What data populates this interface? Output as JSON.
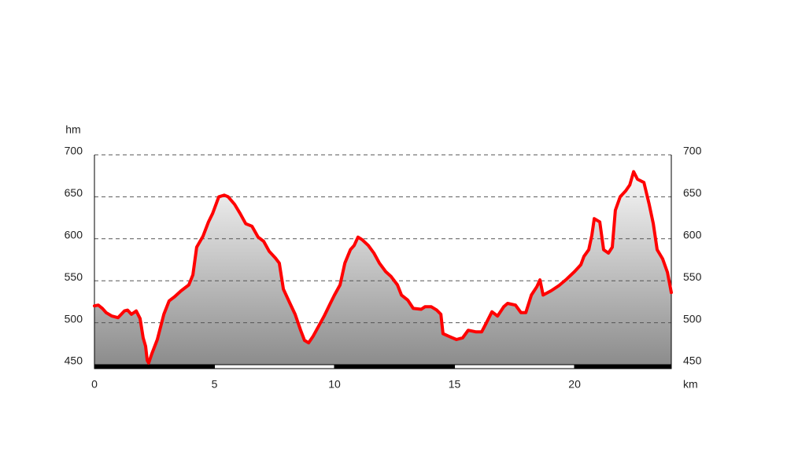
{
  "chart_data": {
    "type": "area",
    "y_label": "hm",
    "x_label": "km",
    "x": [
      0,
      0.16,
      0.33,
      0.49,
      0.72,
      0.98,
      1.25,
      1.38,
      1.54,
      1.74,
      1.9,
      2.03,
      2.13,
      2.2,
      2.26,
      2.39,
      2.62,
      2.89,
      3.11,
      3.34,
      3.61,
      3.93,
      4.1,
      4.26,
      4.52,
      4.75,
      4.92,
      5.18,
      5.41,
      5.57,
      5.84,
      6.07,
      6.3,
      6.56,
      6.82,
      7.05,
      7.28,
      7.54,
      7.7,
      7.87,
      8.13,
      8.36,
      8.59,
      8.75,
      8.92,
      9.11,
      9.34,
      9.57,
      9.84,
      10,
      10.23,
      10.43,
      10.66,
      10.82,
      10.98,
      11.15,
      11.41,
      11.64,
      11.87,
      12.13,
      12.36,
      12.62,
      12.79,
      13.05,
      13.28,
      13.61,
      13.77,
      14.03,
      14.26,
      14.43,
      14.52,
      14.75,
      15.08,
      15.34,
      15.57,
      15.9,
      16.13,
      16.33,
      16.56,
      16.79,
      17.05,
      17.21,
      17.54,
      17.77,
      17.97,
      18.2,
      18.43,
      18.56,
      18.69,
      19.02,
      19.34,
      19.67,
      20,
      20.26,
      20.39,
      20.59,
      20.72,
      20.82,
      21.05,
      21.21,
      21.41,
      21.57,
      21.7,
      21.9,
      22.13,
      22.3,
      22.46,
      22.62,
      22.89,
      23.11,
      23.28,
      23.44,
      23.67,
      23.87,
      24.03
    ],
    "series": [
      {
        "color": "#ff0000",
        "values": [
          520,
          521,
          517,
          512,
          508,
          506,
          514,
          515,
          510,
          514,
          505,
          482,
          472,
          455,
          452,
          463,
          480,
          510,
          526,
          531,
          538,
          545,
          557,
          590,
          603,
          620,
          630,
          650,
          652,
          650,
          641,
          630,
          618,
          615,
          602,
          597,
          585,
          577,
          571,
          540,
          524,
          510,
          491,
          479,
          476,
          484,
          496,
          508,
          524,
          533,
          545,
          571,
          587,
          592,
          602,
          599,
          592,
          583,
          571,
          561,
          555,
          545,
          533,
          527,
          517,
          516,
          519,
          519,
          515,
          510,
          487,
          484,
          480,
          482,
          491,
          489,
          489,
          500,
          513,
          508,
          519,
          523,
          521,
          512,
          512,
          533,
          543,
          551,
          533,
          538,
          544,
          552,
          561,
          569,
          579,
          587,
          604,
          624,
          620,
          587,
          583,
          590,
          634,
          650,
          657,
          664,
          680,
          671,
          667,
          641,
          618,
          587,
          576,
          560,
          536
        ]
      }
    ],
    "xlim": [
      0,
      24.03
    ],
    "xticks": [
      0,
      5,
      10,
      15,
      20
    ],
    "ylim": [
      450,
      700
    ],
    "yticks": [
      450,
      500,
      550,
      600,
      650,
      700
    ],
    "y2lim": [
      450,
      700
    ],
    "y2ticks": [
      450,
      500,
      550,
      600,
      650,
      700
    ],
    "grid": true
  }
}
